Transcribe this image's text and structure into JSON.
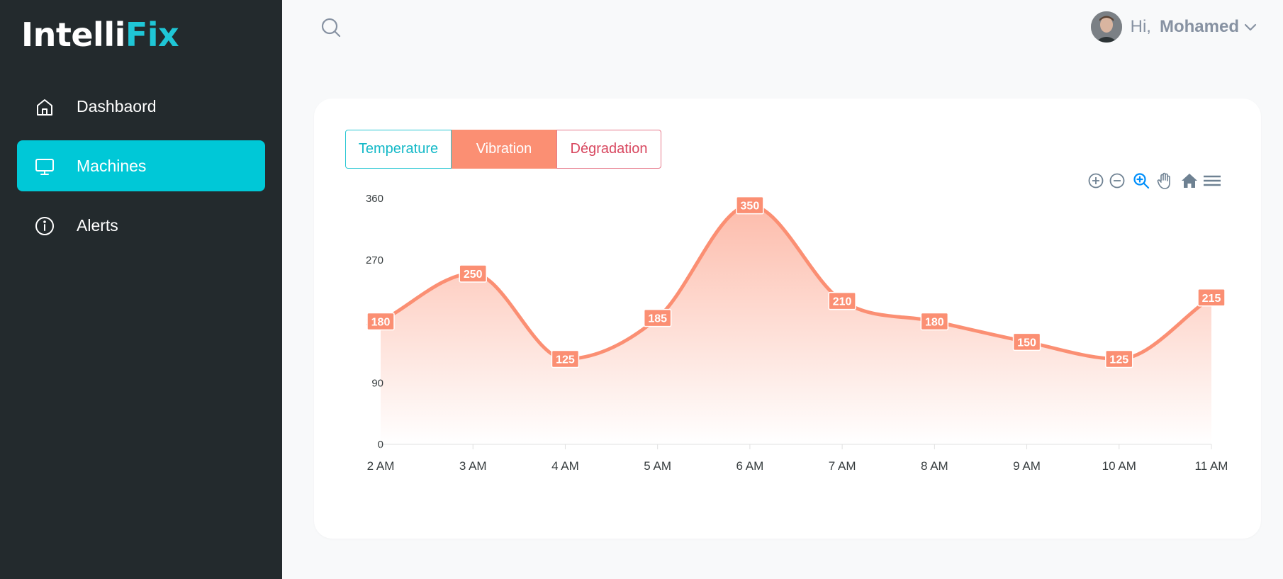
{
  "app": {
    "logo_part1": "Intelli",
    "logo_part2": "Fix"
  },
  "sidebar": {
    "items": [
      {
        "label": "Dashbaord",
        "icon": "home-icon",
        "active": false
      },
      {
        "label": "Machines",
        "icon": "monitor-icon",
        "active": true
      },
      {
        "label": "Alerts",
        "icon": "info-icon",
        "active": false
      }
    ]
  },
  "header": {
    "greeting": "Hi,",
    "user_name": "Mohamed"
  },
  "tabs": [
    {
      "label": "Temperature"
    },
    {
      "label": "Vibration",
      "active": true
    },
    {
      "label": "Dégradation"
    }
  ],
  "colors": {
    "sidebar_bg": "#232a2d",
    "accent": "#00c8d7",
    "series": "#fb8f73",
    "degradation": "#d8475f"
  },
  "chart_data": {
    "type": "area",
    "x": [
      "2 AM",
      "3 AM",
      "4 AM",
      "5 AM",
      "6 AM",
      "7 AM",
      "8 AM",
      "9 AM",
      "10 AM",
      "11 AM"
    ],
    "series": [
      {
        "values": [
          180,
          250,
          125,
          185,
          350,
          210,
          180,
          150,
          125,
          215
        ]
      }
    ],
    "yticks": [
      0,
      90,
      180,
      270,
      360
    ],
    "ylim": [
      0,
      360
    ],
    "data_labels": true,
    "grid": false,
    "legend": "none"
  }
}
